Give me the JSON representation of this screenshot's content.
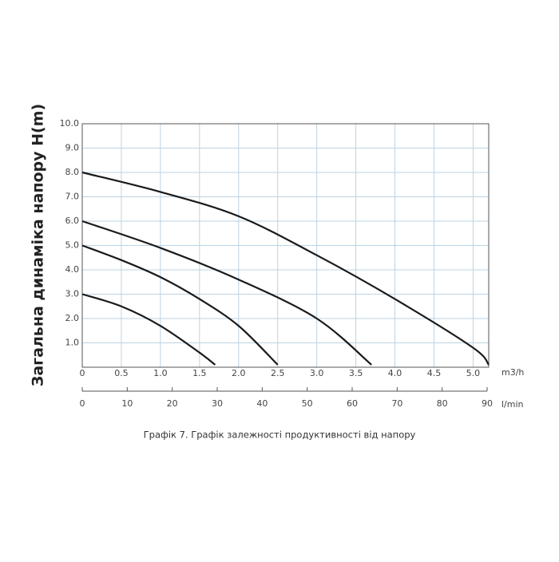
{
  "chart_data": {
    "type": "line",
    "y_label": "Загальна динаміка напору H(m)",
    "x_unit": "m3/h",
    "x2_unit": "l/min",
    "caption": "Графік 7. Графік залежності продуктивності від напору",
    "xlim": [
      0,
      5.2
    ],
    "xticks": [
      0,
      0.5,
      {
        "value": 1,
        "label": "1.0"
      },
      1.5,
      {
        "value": 2,
        "label": "2.0"
      },
      2.5,
      {
        "value": 3,
        "label": "3.0"
      },
      3.5,
      {
        "value": 4,
        "label": "4.0"
      },
      4.5,
      {
        "value": 5,
        "label": "5.0"
      }
    ],
    "x2lim": [
      0,
      90
    ],
    "x2ticks": [
      0,
      10,
      20,
      30,
      40,
      50,
      60,
      70,
      80,
      90
    ],
    "ylim": [
      0,
      10
    ],
    "yticks": [
      {
        "value": 1,
        "label": "1.0"
      },
      {
        "value": 2,
        "label": "2.0"
      },
      {
        "value": 3,
        "label": "3.0"
      },
      {
        "value": 4,
        "label": "4.0"
      },
      {
        "value": 5,
        "label": "5.0"
      },
      {
        "value": 6,
        "label": "6.0"
      },
      {
        "value": 7,
        "label": "7.0"
      },
      {
        "value": 8,
        "label": "8.0"
      },
      {
        "value": 9,
        "label": "9.0"
      },
      {
        "value": 10,
        "label": "10.0"
      }
    ],
    "grid": true,
    "series": [
      {
        "color": "#1a1a1a",
        "x": [
          0,
          1,
          2,
          3,
          4,
          5,
          5.2
        ],
        "values": [
          8.0,
          7.2,
          6.2,
          4.6,
          2.8,
          0.8,
          0.1
        ]
      },
      {
        "color": "#1a1a1a",
        "x": [
          0,
          1,
          2,
          3,
          3.7
        ],
        "values": [
          6.0,
          4.9,
          3.6,
          2.0,
          0.1
        ]
      },
      {
        "color": "#1a1a1a",
        "x": [
          0,
          0.5,
          1,
          1.5,
          2,
          2.5
        ],
        "values": [
          5.0,
          4.4,
          3.7,
          2.8,
          1.7,
          0.1
        ]
      },
      {
        "color": "#1a1a1a",
        "x": [
          0,
          0.5,
          1,
          1.5,
          1.7
        ],
        "values": [
          3.0,
          2.5,
          1.7,
          0.6,
          0.1
        ]
      }
    ]
  }
}
